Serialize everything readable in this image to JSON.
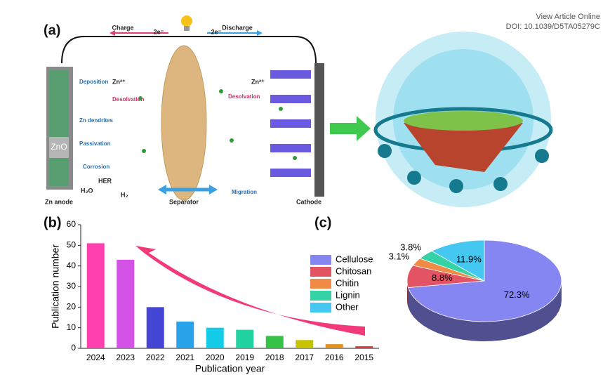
{
  "header": {
    "link": "View Article Online",
    "doi": "DOI: 10.1039/D5TA05279C"
  },
  "panels": {
    "a": "(a)",
    "b": "(b)",
    "c": "(c)"
  },
  "diagram": {
    "charge": "Charge",
    "charge_e": "2e⁻",
    "discharge": "Discharge",
    "discharge_e": "2e⁻",
    "deposition": "Deposition",
    "zn_ion_left": "Zn²⁺",
    "desolvation_left": "Desolvation",
    "dendrites": "Zn dendrites",
    "zno": "ZnO",
    "passivation": "Passivation",
    "corrosion": "Corrosion",
    "her": "HER",
    "h2o": "H₂O",
    "h2": "H₂",
    "anode": "Zn anode",
    "separator": "Separator",
    "migration": "Migration",
    "zn_ion_right": "Zn²⁺",
    "desolvation_right": "Desolvation",
    "cathode": "Cathode"
  },
  "chart_data": [
    {
      "type": "bar",
      "x_label": "Publication year",
      "y_label": "Publication number",
      "categories": [
        "2024",
        "2023",
        "2022",
        "2021",
        "2020",
        "2019",
        "2018",
        "2017",
        "2016",
        "2015"
      ],
      "values": [
        51,
        43,
        20,
        13,
        10,
        9,
        6,
        4,
        2,
        1
      ],
      "colors": [
        "#ff3fae",
        "#d452e6",
        "#4646d6",
        "#2aa2ea",
        "#14cbe8",
        "#22d3a2",
        "#36c246",
        "#c6c400",
        "#e2901e",
        "#e23a3a"
      ],
      "ylim": [
        0,
        60
      ],
      "yticks": [
        0,
        10,
        20,
        30,
        40,
        50,
        60
      ]
    },
    {
      "type": "pie",
      "categories": [
        "Cellulose",
        "Chitosan",
        "Chitin",
        "Lignin",
        "Other"
      ],
      "values": [
        72.3,
        8.8,
        3.1,
        3.8,
        11.9
      ],
      "value_labels": [
        "72.3%",
        "8.8%",
        "3.1%",
        "3.8%",
        "11.9%"
      ],
      "colors": [
        "#8686f2",
        "#e25464",
        "#f08a44",
        "#34d2a4",
        "#44c8f2"
      ],
      "legend": "left"
    }
  ]
}
